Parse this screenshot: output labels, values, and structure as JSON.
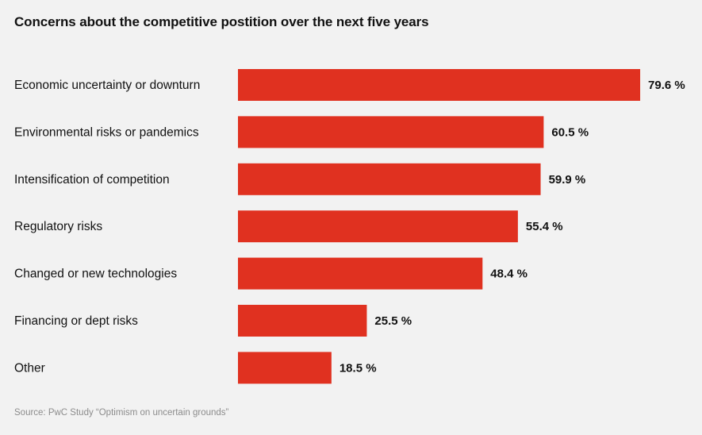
{
  "chart_data": {
    "type": "bar",
    "orientation": "horizontal",
    "title": "Concerns about the competitive postition over the next five years",
    "categories": [
      "Economic uncertainty or downturn",
      "Environmental risks or pandemics",
      "Intensification of competition",
      "Regulatory risks",
      "Changed or new technologies",
      "Financing or dept risks",
      "Other"
    ],
    "values": [
      79.6,
      60.5,
      59.9,
      55.4,
      48.4,
      25.5,
      18.5
    ],
    "value_labels": [
      "79.6 %",
      "60.5 %",
      "59.9 %",
      "55.4 %",
      "48.4 %",
      "25.5 %",
      "18.5 %"
    ],
    "bar_color": "#e03120",
    "grid": false,
    "legend": "none"
  },
  "source": "Source: PwC Study “Optimism on uncertain grounds”"
}
